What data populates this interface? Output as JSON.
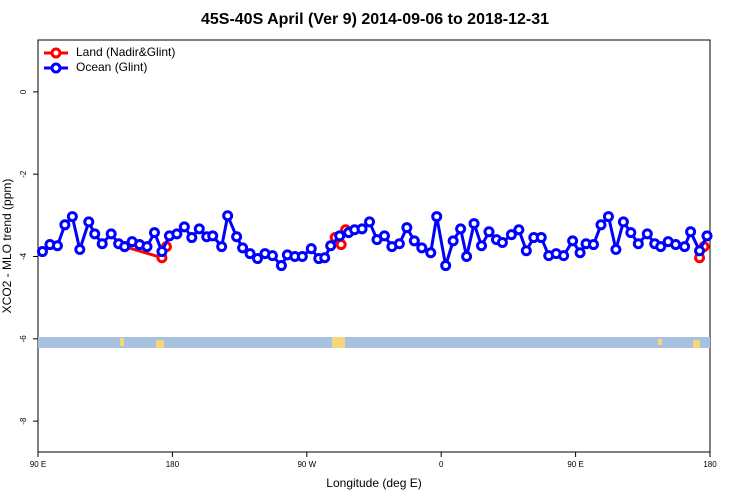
{
  "chart_data": {
    "type": "line",
    "title": "45S-40S April (Ver 9)   2014-09-06 to 2018-12-31",
    "x_label": "Longitude (deg E)",
    "y_label": "XCO2 - MLO trend (ppm)",
    "xlim": [
      90,
      540
    ],
    "ylim": [
      -8.75,
      1.26
    ],
    "xticks": [
      {
        "value": 90,
        "label": "90 E"
      },
      180,
      {
        "value": 270,
        "label": "90 W"
      },
      {
        "value": 360,
        "label": "0"
      },
      {
        "value": 450,
        "label": "90 E"
      },
      {
        "value": 540,
        "label": "180"
      }
    ],
    "yticks": [
      -8,
      -6,
      -4,
      -2,
      0
    ],
    "legend": "top-left",
    "series": [
      {
        "name": "Land (Nadir&Glint)",
        "color": "#ff0000",
        "x": [
          148,
          173,
          176,
          null,
          289,
          293,
          296,
          null,
          533,
          536
        ],
        "values": [
          -3.76,
          -4.03,
          -3.76,
          null,
          -3.54,
          -3.71,
          -3.35,
          null,
          -4.03,
          -3.76
        ]
      },
      {
        "name": "Ocean (Glint)",
        "color": "#0000ff",
        "x": [
          93,
          98,
          103,
          108,
          113,
          118,
          124,
          128,
          133,
          139,
          144,
          148,
          153,
          158,
          163,
          168,
          173,
          178,
          183,
          188,
          193,
          198,
          203,
          207,
          213,
          217,
          223,
          227,
          232,
          237,
          242,
          247,
          253,
          257,
          262,
          267,
          273,
          278,
          282,
          286,
          292,
          298,
          302,
          307,
          312,
          317,
          322,
          327,
          332,
          337,
          342,
          347,
          353,
          357,
          363,
          368,
          373,
          377,
          382,
          387,
          392,
          397,
          401,
          407,
          412,
          417,
          422,
          427,
          432,
          437,
          442,
          448,
          453,
          457,
          462,
          467,
          472,
          477,
          482,
          487,
          492,
          498,
          503,
          507,
          512,
          517,
          523,
          527,
          533,
          538
        ],
        "values": [
          -3.88,
          -3.71,
          -3.74,
          -3.23,
          -3.03,
          -3.83,
          -3.16,
          -3.45,
          -3.69,
          -3.45,
          -3.69,
          -3.76,
          -3.64,
          -3.71,
          -3.76,
          -3.42,
          -3.88,
          -3.5,
          -3.45,
          -3.28,
          -3.54,
          -3.33,
          -3.52,
          -3.5,
          -3.76,
          -3.01,
          -3.52,
          -3.79,
          -3.93,
          -4.05,
          -3.93,
          -3.98,
          -4.22,
          -3.96,
          -4.0,
          -4.0,
          -3.81,
          -4.05,
          -4.03,
          -3.74,
          -3.5,
          -3.42,
          -3.35,
          -3.33,
          -3.16,
          -3.59,
          -3.5,
          -3.76,
          -3.69,
          -3.3,
          -3.62,
          -3.79,
          -3.91,
          -3.03,
          -4.22,
          -3.62,
          -3.33,
          -4.0,
          -3.2,
          -3.74,
          -3.4,
          -3.59,
          -3.66,
          -3.47,
          -3.35,
          -3.86,
          -3.54,
          -3.54,
          -3.98,
          -3.93,
          -3.98,
          -3.62,
          -3.91,
          -3.69,
          -3.71,
          -3.23,
          -3.03,
          -3.83,
          -3.16,
          -3.42,
          -3.69,
          -3.45,
          -3.69,
          -3.76,
          -3.64,
          -3.71,
          -3.76,
          -3.4,
          -3.86,
          -3.5
        ]
      }
    ]
  }
}
